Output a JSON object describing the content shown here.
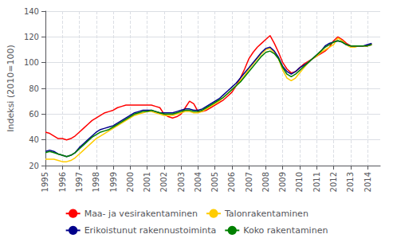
{
  "chart_data": {
    "type": "line",
    "ylabel": "Indeksi (2010=100)",
    "xlim": [
      1995,
      2014.75
    ],
    "xticks": [
      1995,
      1996,
      1997,
      1998,
      1999,
      2000,
      2001,
      2002,
      2003,
      2004,
      2005,
      2006,
      2007,
      2008,
      2009,
      2010,
      2011,
      2012,
      2013,
      2014
    ],
    "ylim": [
      20,
      140
    ],
    "yticks": [
      20,
      40,
      60,
      80,
      100,
      120,
      140
    ],
    "grid": true,
    "legend": "bottom",
    "x": [
      1995.0,
      1995.25,
      1995.5,
      1995.75,
      1996.0,
      1996.25,
      1996.5,
      1996.75,
      1997.0,
      1997.25,
      1997.5,
      1997.75,
      1998.0,
      1998.25,
      1998.5,
      1998.75,
      1999.0,
      1999.25,
      1999.5,
      1999.75,
      2000.0,
      2000.25,
      2000.5,
      2000.75,
      2001.0,
      2001.25,
      2001.5,
      2001.75,
      2002.0,
      2002.25,
      2002.5,
      2002.75,
      2003.0,
      2003.25,
      2003.5,
      2003.75,
      2004.0,
      2004.25,
      2004.5,
      2004.75,
      2005.0,
      2005.25,
      2005.5,
      2005.75,
      2006.0,
      2006.25,
      2006.5,
      2006.75,
      2007.0,
      2007.25,
      2007.5,
      2007.75,
      2008.0,
      2008.25,
      2008.5,
      2008.75,
      2009.0,
      2009.25,
      2009.5,
      2009.75,
      2010.0,
      2010.25,
      2010.5,
      2010.75,
      2011.0,
      2011.25,
      2011.5,
      2011.75,
      2012.0,
      2012.25,
      2012.5,
      2012.75,
      2013.0,
      2013.25,
      2013.5,
      2013.75,
      2014.0,
      2014.25
    ],
    "series": [
      {
        "name": "Maa- ja vesirakentaminen",
        "color": "#ff0000",
        "values": [
          46,
          45,
          43,
          41,
          41,
          40,
          41,
          43,
          46,
          49,
          52,
          55,
          57,
          59,
          61,
          62,
          63,
          65,
          66,
          67,
          67,
          67,
          67,
          67,
          67,
          67,
          66,
          65,
          60,
          58,
          57,
          58,
          60,
          65,
          70,
          68,
          62,
          62,
          63,
          65,
          67,
          69,
          71,
          74,
          77,
          82,
          88,
          95,
          103,
          108,
          112,
          115,
          118,
          121,
          115,
          108,
          100,
          95,
          92,
          93,
          96,
          99,
          101,
          103,
          105,
          107,
          109,
          112,
          117,
          120,
          118,
          115,
          113,
          113,
          113,
          113,
          113,
          114
        ]
      },
      {
        "name": "Talonrakentaminen",
        "color": "#ffcc00",
        "values": [
          25,
          25,
          25,
          24,
          23,
          23,
          24,
          26,
          29,
          32,
          35,
          38,
          41,
          43,
          45,
          47,
          49,
          51,
          53,
          55,
          57,
          59,
          60,
          61,
          62,
          62,
          61,
          60,
          59,
          59,
          59,
          60,
          61,
          62,
          62,
          61,
          61,
          62,
          64,
          66,
          68,
          70,
          73,
          76,
          79,
          82,
          86,
          90,
          95,
          99,
          103,
          107,
          110,
          111,
          108,
          103,
          94,
          88,
          86,
          88,
          92,
          96,
          100,
          103,
          105,
          108,
          110,
          112,
          114,
          119,
          117,
          114,
          112,
          112,
          113,
          113,
          113,
          114
        ]
      },
      {
        "name": "Erikoistunut rakennustoiminta",
        "color": "#00008b",
        "values": [
          31,
          32,
          31,
          29,
          28,
          27,
          28,
          30,
          34,
          37,
          40,
          43,
          46,
          48,
          49,
          50,
          51,
          53,
          55,
          57,
          59,
          61,
          62,
          63,
          63,
          63,
          62,
          61,
          61,
          61,
          61,
          62,
          63,
          64,
          64,
          63,
          63,
          64,
          66,
          68,
          70,
          72,
          75,
          78,
          81,
          84,
          88,
          92,
          96,
          100,
          104,
          108,
          111,
          112,
          109,
          104,
          97,
          93,
          91,
          93,
          96,
          98,
          100,
          103,
          106,
          109,
          113,
          115,
          116,
          117,
          116,
          114,
          113,
          113,
          113,
          113,
          114,
          115
        ]
      },
      {
        "name": "Koko rakentaminen",
        "color": "#008000",
        "values": [
          30,
          31,
          30,
          29,
          28,
          27,
          28,
          30,
          33,
          36,
          39,
          42,
          44,
          46,
          47,
          48,
          50,
          52,
          54,
          56,
          58,
          60,
          61,
          62,
          62,
          63,
          62,
          61,
          60,
          60,
          60,
          61,
          62,
          63,
          63,
          62,
          62,
          63,
          65,
          67,
          69,
          71,
          73,
          76,
          79,
          82,
          85,
          89,
          93,
          97,
          101,
          105,
          108,
          109,
          107,
          103,
          96,
          91,
          89,
          91,
          94,
          97,
          100,
          103,
          106,
          109,
          112,
          114,
          116,
          117,
          116,
          114,
          113,
          113,
          113,
          113,
          113,
          114
        ]
      }
    ]
  }
}
